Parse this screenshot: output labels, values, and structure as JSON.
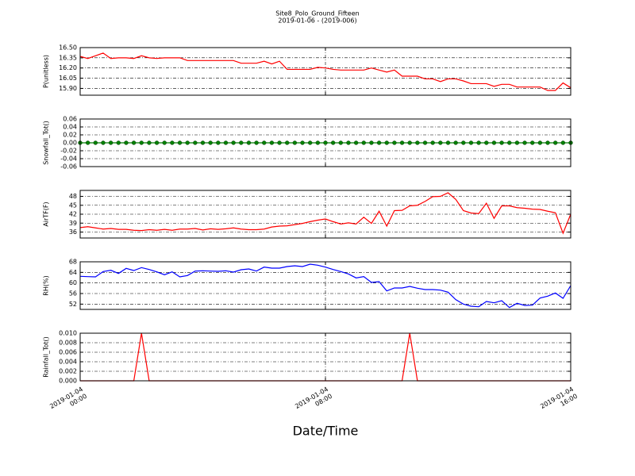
{
  "chart_data": {
    "type": "line",
    "title": "Site8_Polo_Ground_Fifteen",
    "subtitle": "2019-01-06 - (2019-006)",
    "xlabel": "Date/Time",
    "x": [
      "2019-01-04 00:00",
      "2019-01-04 00:15",
      "2019-01-04 00:30",
      "2019-01-04 00:45",
      "2019-01-04 01:00",
      "2019-01-04 01:15",
      "2019-01-04 01:30",
      "2019-01-04 01:45",
      "2019-01-04 02:00",
      "2019-01-04 02:15",
      "2019-01-04 02:30",
      "2019-01-04 02:45",
      "2019-01-04 03:00",
      "2019-01-04 03:15",
      "2019-01-04 03:30",
      "2019-01-04 03:45",
      "2019-01-04 04:00",
      "2019-01-04 04:15",
      "2019-01-04 04:30",
      "2019-01-04 04:45",
      "2019-01-04 05:00",
      "2019-01-04 05:15",
      "2019-01-04 05:30",
      "2019-01-04 05:45",
      "2019-01-04 06:00",
      "2019-01-04 06:15",
      "2019-01-04 06:30",
      "2019-01-04 06:45",
      "2019-01-04 07:00",
      "2019-01-04 07:15",
      "2019-01-04 07:30",
      "2019-01-04 07:45",
      "2019-01-04 08:00",
      "2019-01-04 08:15",
      "2019-01-04 08:30",
      "2019-01-04 08:45",
      "2019-01-04 09:00",
      "2019-01-04 09:15",
      "2019-01-04 09:30",
      "2019-01-04 09:45",
      "2019-01-04 10:00",
      "2019-01-04 10:15",
      "2019-01-04 10:30",
      "2019-01-04 10:45",
      "2019-01-04 11:00",
      "2019-01-04 11:15",
      "2019-01-04 11:30",
      "2019-01-04 11:45",
      "2019-01-04 12:00",
      "2019-01-04 12:15",
      "2019-01-04 12:30",
      "2019-01-04 12:45",
      "2019-01-04 13:00",
      "2019-01-04 13:15",
      "2019-01-04 13:30",
      "2019-01-04 13:45",
      "2019-01-04 14:00",
      "2019-01-04 14:15",
      "2019-01-04 14:30",
      "2019-01-04 14:45",
      "2019-01-04 15:00",
      "2019-01-04 15:15",
      "2019-01-04 15:30",
      "2019-01-04 15:45",
      "2019-01-04 16:00"
    ],
    "xlim": [
      "2019-01-04 00:00",
      "2019-01-04 16:00"
    ],
    "xticks": [
      {
        "value": "2019-01-04 00:00",
        "label": "2019-01-04\n00:00"
      },
      {
        "value": "2019-01-04 08:00",
        "label": "2019-01-04\n08:00"
      },
      {
        "value": "2019-01-04 16:00",
        "label": "2019-01-04\n16:00"
      }
    ],
    "grid": true,
    "panels": [
      {
        "ylabel": "P(unitless)",
        "color": "#ff0000",
        "ylim": [
          15.8,
          16.5
        ],
        "yticks": [
          {
            "value": 15.9,
            "label": "15.90"
          },
          16.05,
          {
            "value": 16.2,
            "label": "16.20"
          },
          16.35,
          {
            "value": 16.5,
            "label": "16.50"
          }
        ],
        "values": [
          16.37,
          16.34,
          16.38,
          16.42,
          16.34,
          16.35,
          16.35,
          16.34,
          16.38,
          16.35,
          16.34,
          16.35,
          16.35,
          16.35,
          16.31,
          16.31,
          16.31,
          16.31,
          16.31,
          16.31,
          16.31,
          16.27,
          16.27,
          16.27,
          16.3,
          16.26,
          16.3,
          16.18,
          16.18,
          16.18,
          16.18,
          16.21,
          16.2,
          16.18,
          16.17,
          16.17,
          16.17,
          16.17,
          16.2,
          16.17,
          16.14,
          16.17,
          16.08,
          16.08,
          16.08,
          16.04,
          16.04,
          16.0,
          16.04,
          16.04,
          16.01,
          15.97,
          15.97,
          15.97,
          15.93,
          15.96,
          15.96,
          15.92,
          15.92,
          15.92,
          15.92,
          15.87,
          15.87,
          15.98,
          15.91
        ]
      },
      {
        "ylabel": "Snowfall_Tot()",
        "color": "#008000",
        "markers": true,
        "ylim": [
          -0.06,
          0.06
        ],
        "yticks": [
          -0.06,
          -0.04,
          -0.02,
          {
            "value": 0,
            "label": "0.00"
          },
          0.02,
          0.04,
          0.06
        ],
        "values": [
          0,
          0,
          0,
          0,
          0,
          0,
          0,
          0,
          0,
          0,
          0,
          0,
          0,
          0,
          0,
          0,
          0,
          0,
          0,
          0,
          0,
          0,
          0,
          0,
          0,
          0,
          0,
          0,
          0,
          0,
          0,
          0,
          0,
          0,
          0,
          0,
          0,
          0,
          0,
          0,
          0,
          0,
          0,
          0,
          0,
          0,
          0,
          0,
          0,
          0,
          0,
          0,
          0,
          0,
          0,
          0,
          0,
          0,
          0,
          0,
          0,
          0,
          0,
          0,
          0
        ]
      },
      {
        "ylabel": "AirTF(F)",
        "color": "#ff0000",
        "ylim": [
          34,
          50
        ],
        "yticks": [
          36,
          39,
          42,
          45,
          48
        ],
        "values": [
          37.5,
          37.8,
          37.4,
          37.0,
          37.2,
          36.9,
          36.9,
          36.6,
          36.5,
          36.8,
          36.6,
          36.9,
          36.6,
          37.0,
          37.0,
          37.2,
          36.7,
          37.1,
          36.9,
          37.1,
          37.4,
          37.0,
          36.8,
          36.8,
          37.0,
          37.7,
          38.0,
          38.1,
          38.5,
          38.9,
          39.5,
          40.0,
          40.4,
          39.5,
          38.7,
          39.1,
          38.7,
          41.0,
          38.9,
          43.0,
          38.0,
          43.2,
          43.3,
          44.8,
          45.0,
          46.3,
          47.9,
          48.0,
          49.2,
          47.0,
          43.2,
          42.4,
          42.2,
          45.7,
          40.6,
          44.8,
          44.8,
          44.2,
          44.0,
          43.7,
          43.6,
          43.0,
          42.5,
          35.6,
          42.0
        ]
      },
      {
        "ylabel": "RH(%)",
        "color": "#0000ff",
        "ylim": [
          50,
          68
        ],
        "yticks": [
          52,
          56,
          60,
          64,
          68
        ],
        "values": [
          62.5,
          62.4,
          62.3,
          64.3,
          64.8,
          63.6,
          65.5,
          64.7,
          65.8,
          65.1,
          64.2,
          63.1,
          64.2,
          62.3,
          62.8,
          64.5,
          64.6,
          64.5,
          64.4,
          64.6,
          64.1,
          65.0,
          65.3,
          64.5,
          66.0,
          65.6,
          65.6,
          66.2,
          66.5,
          66.2,
          67.1,
          66.7,
          66.0,
          65.1,
          64.3,
          63.4,
          61.9,
          62.4,
          60.2,
          60.5,
          57.0,
          58.1,
          58.1,
          58.7,
          58.0,
          57.5,
          57.5,
          57.3,
          56.5,
          53.7,
          52.0,
          51.2,
          51.0,
          53.0,
          52.5,
          53.3,
          50.7,
          52.3,
          51.5,
          51.6,
          54.3,
          55.0,
          56.2,
          54.2,
          59.0
        ]
      },
      {
        "ylabel": "Rainfall_Tot()",
        "color": "#ff0000",
        "ylim": [
          0,
          0.01
        ],
        "yticks": [
          {
            "value": 0,
            "label": "0.000"
          },
          0.002,
          0.004,
          0.006,
          0.008,
          {
            "value": 0.01,
            "label": "0.010"
          }
        ],
        "values": [
          0,
          0,
          0,
          0,
          0,
          0,
          0,
          0,
          0.01,
          0,
          0,
          0,
          0,
          0,
          0,
          0,
          0,
          0,
          0,
          0,
          0,
          0,
          0,
          0,
          0,
          0,
          0,
          0,
          0,
          0,
          0,
          0,
          0,
          0,
          0,
          0,
          0,
          0,
          0,
          0,
          0,
          0,
          0,
          0.01,
          0,
          0,
          0,
          0,
          0,
          0,
          0,
          0,
          0,
          0,
          0,
          0,
          0,
          0,
          0,
          0,
          0,
          0,
          0,
          0,
          0
        ]
      }
    ]
  }
}
